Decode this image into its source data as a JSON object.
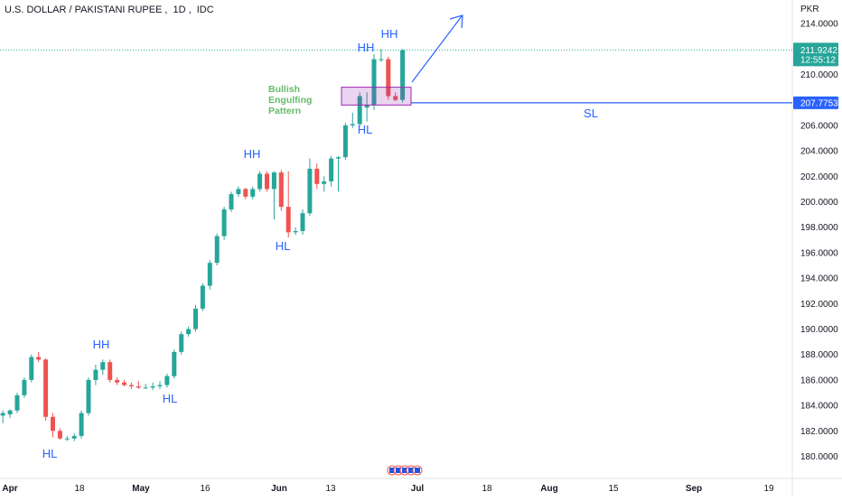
{
  "header": {
    "symbol": "U.S. DOLLAR / PAKISTANI RUPEE",
    "interval": "1D",
    "exchange": "IDC"
  },
  "currency_label": "PKR",
  "last_price": {
    "value": "211.9242",
    "countdown": "12:55:12",
    "color": "#26a69a"
  },
  "sl_price": {
    "value": "207.7753",
    "color": "#2962ff"
  },
  "colors": {
    "up": "#26a69a",
    "down": "#ef5350",
    "annotation": "#2962ff",
    "pattern_text": "#66bb6a",
    "pattern_box": "#9c27b0"
  },
  "chart_data": {
    "type": "candlestick",
    "y_ticks": [
      "180.0000",
      "182.0000",
      "184.0000",
      "186.0000",
      "188.0000",
      "190.0000",
      "192.0000",
      "194.0000",
      "196.0000",
      "198.0000",
      "200.0000",
      "202.0000",
      "204.0000",
      "206.0000",
      "208.0000",
      "210.0000",
      "212.0000",
      "214.0000"
    ],
    "ylim": [
      179.2,
      215.2
    ],
    "x_ticks": [
      "Apr",
      "18",
      "May",
      "16",
      "Jun",
      "13",
      "Jul",
      "18",
      "Aug",
      "15",
      "Sep",
      "19"
    ],
    "candles": [
      {
        "o": 183.2,
        "h": 183.6,
        "l": 182.6,
        "c": 183.4
      },
      {
        "o": 183.3,
        "h": 183.7,
        "l": 183.0,
        "c": 183.6
      },
      {
        "o": 183.6,
        "h": 185.0,
        "l": 183.4,
        "c": 184.8
      },
      {
        "o": 184.8,
        "h": 186.2,
        "l": 184.6,
        "c": 186.0
      },
      {
        "o": 186.0,
        "h": 188.0,
        "l": 185.8,
        "c": 187.8
      },
      {
        "o": 187.8,
        "h": 188.2,
        "l": 187.4,
        "c": 187.6
      },
      {
        "o": 187.6,
        "h": 187.7,
        "l": 182.8,
        "c": 183.1
      },
      {
        "o": 183.1,
        "h": 183.4,
        "l": 181.5,
        "c": 182.0
      },
      {
        "o": 182.0,
        "h": 182.2,
        "l": 181.3,
        "c": 181.4
      },
      {
        "o": 181.4,
        "h": 181.6,
        "l": 181.2,
        "c": 181.4
      },
      {
        "o": 181.4,
        "h": 181.8,
        "l": 181.2,
        "c": 181.6
      },
      {
        "o": 181.6,
        "h": 183.6,
        "l": 181.4,
        "c": 183.4
      },
      {
        "o": 183.4,
        "h": 186.2,
        "l": 183.2,
        "c": 186.0
      },
      {
        "o": 186.0,
        "h": 187.2,
        "l": 185.6,
        "c": 186.8
      },
      {
        "o": 186.8,
        "h": 187.6,
        "l": 186.4,
        "c": 187.4
      },
      {
        "o": 187.4,
        "h": 187.6,
        "l": 185.8,
        "c": 186.0
      },
      {
        "o": 186.0,
        "h": 186.2,
        "l": 185.6,
        "c": 185.8
      },
      {
        "o": 185.8,
        "h": 186.0,
        "l": 185.5,
        "c": 185.6
      },
      {
        "o": 185.6,
        "h": 185.8,
        "l": 185.3,
        "c": 185.5
      },
      {
        "o": 185.5,
        "h": 185.9,
        "l": 185.3,
        "c": 185.4
      },
      {
        "o": 185.4,
        "h": 185.7,
        "l": 185.3,
        "c": 185.4
      },
      {
        "o": 185.4,
        "h": 185.8,
        "l": 185.2,
        "c": 185.5
      },
      {
        "o": 185.5,
        "h": 185.9,
        "l": 185.3,
        "c": 185.6
      },
      {
        "o": 185.6,
        "h": 186.5,
        "l": 185.4,
        "c": 186.3
      },
      {
        "o": 186.3,
        "h": 188.4,
        "l": 186.1,
        "c": 188.2
      },
      {
        "o": 188.2,
        "h": 189.8,
        "l": 188.0,
        "c": 189.6
      },
      {
        "o": 189.6,
        "h": 190.2,
        "l": 189.4,
        "c": 190.0
      },
      {
        "o": 190.0,
        "h": 191.9,
        "l": 189.8,
        "c": 191.6
      },
      {
        "o": 191.6,
        "h": 193.6,
        "l": 191.4,
        "c": 193.4
      },
      {
        "o": 193.4,
        "h": 195.4,
        "l": 193.1,
        "c": 195.2
      },
      {
        "o": 195.2,
        "h": 197.5,
        "l": 195.0,
        "c": 197.3
      },
      {
        "o": 197.3,
        "h": 199.6,
        "l": 197.0,
        "c": 199.4
      },
      {
        "o": 199.4,
        "h": 200.8,
        "l": 199.2,
        "c": 200.6
      },
      {
        "o": 200.6,
        "h": 201.2,
        "l": 200.4,
        "c": 201.0
      },
      {
        "o": 201.0,
        "h": 201.1,
        "l": 200.2,
        "c": 200.4
      },
      {
        "o": 200.4,
        "h": 201.2,
        "l": 200.2,
        "c": 201.0
      },
      {
        "o": 201.0,
        "h": 202.4,
        "l": 200.8,
        "c": 202.2
      },
      {
        "o": 202.2,
        "h": 202.4,
        "l": 200.8,
        "c": 201.0
      },
      {
        "o": 201.0,
        "h": 202.4,
        "l": 198.6,
        "c": 202.3
      },
      {
        "o": 202.3,
        "h": 202.5,
        "l": 199.3,
        "c": 199.6
      },
      {
        "o": 199.6,
        "h": 202.4,
        "l": 197.2,
        "c": 197.6
      },
      {
        "o": 197.6,
        "h": 198.0,
        "l": 197.4,
        "c": 197.7
      },
      {
        "o": 197.7,
        "h": 199.4,
        "l": 197.4,
        "c": 199.1
      },
      {
        "o": 199.1,
        "h": 203.4,
        "l": 198.9,
        "c": 202.6
      },
      {
        "o": 202.6,
        "h": 203.0,
        "l": 201.0,
        "c": 201.4
      },
      {
        "o": 201.4,
        "h": 202.0,
        "l": 200.8,
        "c": 201.6
      },
      {
        "o": 201.6,
        "h": 203.6,
        "l": 201.2,
        "c": 203.4
      },
      {
        "o": 203.4,
        "h": 203.6,
        "l": 200.8,
        "c": 203.5
      },
      {
        "o": 203.5,
        "h": 206.2,
        "l": 203.3,
        "c": 206.0
      },
      {
        "o": 206.0,
        "h": 207.0,
        "l": 205.8,
        "c": 206.1
      },
      {
        "o": 206.1,
        "h": 208.6,
        "l": 205.9,
        "c": 208.3
      },
      {
        "o": 207.4,
        "h": 208.6,
        "l": 206.3,
        "c": 207.6
      },
      {
        "o": 207.6,
        "h": 211.6,
        "l": 207.2,
        "c": 211.2
      },
      {
        "o": 211.2,
        "h": 212.0,
        "l": 211.0,
        "c": 211.2
      },
      {
        "o": 211.2,
        "h": 211.4,
        "l": 208.0,
        "c": 208.3
      },
      {
        "o": 208.3,
        "h": 208.6,
        "l": 207.9,
        "c": 208.0
      },
      {
        "o": 208.0,
        "h": 212.0,
        "l": 207.8,
        "c": 211.9
      }
    ]
  },
  "annotations": {
    "labels": [
      "HL",
      "HH",
      "HL",
      "HH",
      "HL",
      "HL",
      "HH",
      "HH"
    ],
    "pattern_text": [
      "Bullish",
      "Engulfing",
      "Pattern"
    ],
    "sl_label": "SL"
  },
  "event_flags": [
    "US",
    "US",
    "US",
    "US",
    "US"
  ]
}
